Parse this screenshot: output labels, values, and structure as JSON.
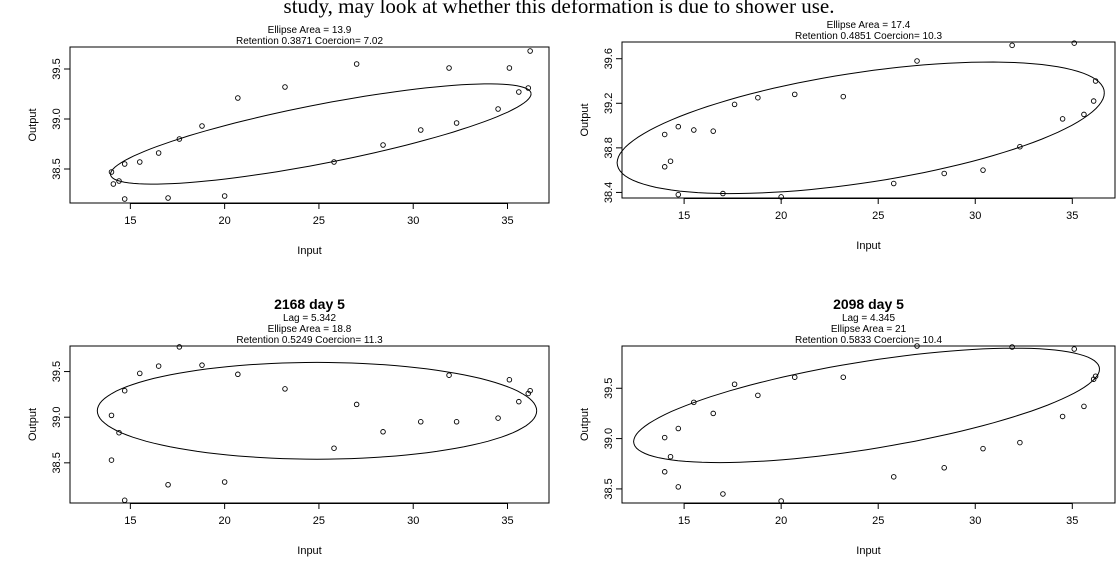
{
  "caption": "study, may look at whether this deformation is due to shower use.",
  "chart_data": [
    {
      "type": "scatter",
      "title": "",
      "lines": [
        "Ellipse Area = 13.9",
        "Retention 0.3871 Coercion= 7.02"
      ],
      "xlabel": "Input",
      "ylabel": "Output",
      "xlim": [
        11.8,
        37.2
      ],
      "ylim": [
        38.16,
        39.72
      ],
      "xticks": [
        "15",
        "20",
        "25",
        "30",
        "35"
      ],
      "yticks": [
        "38.5",
        "39.0",
        "39.5"
      ],
      "points": [
        [
          14.0,
          38.47
        ],
        [
          14.1,
          38.35
        ],
        [
          14.4,
          38.38
        ],
        [
          14.7,
          38.55
        ],
        [
          14.7,
          38.2
        ],
        [
          15.5,
          38.57
        ],
        [
          16.5,
          38.66
        ],
        [
          17.0,
          38.21
        ],
        [
          17.6,
          38.8
        ],
        [
          18.8,
          38.93
        ],
        [
          20.0,
          38.23
        ],
        [
          20.7,
          39.21
        ],
        [
          23.2,
          39.32
        ],
        [
          25.8,
          38.57
        ],
        [
          27.0,
          39.55
        ],
        [
          28.4,
          38.74
        ],
        [
          30.4,
          38.89
        ],
        [
          31.9,
          39.51
        ],
        [
          32.3,
          38.96
        ],
        [
          34.5,
          39.1
        ],
        [
          35.1,
          39.51
        ],
        [
          35.6,
          39.27
        ],
        [
          36.1,
          39.31
        ],
        [
          36.2,
          39.68
        ]
      ],
      "ellipse": {
        "cx": 25.1,
        "cy": 38.85,
        "rx": 11.15,
        "ry": 0.3,
        "rotation": 0.036
      }
    },
    {
      "type": "scatter",
      "title": "",
      "lines": [
        "Ellipse Area = 17.4",
        "Retention 0.4851 Coercion= 10.3"
      ],
      "xlabel": "Input",
      "ylabel": "Output",
      "xlim": [
        11.8,
        37.2
      ],
      "ylim": [
        38.35,
        39.75
      ],
      "xticks": [
        "15",
        "20",
        "25",
        "30",
        "35"
      ],
      "yticks": [
        "38.4",
        "38.8",
        "39.2",
        "39.6"
      ],
      "points": [
        [
          14.0,
          38.92
        ],
        [
          14.0,
          38.63
        ],
        [
          14.3,
          38.68
        ],
        [
          14.7,
          38.99
        ],
        [
          14.7,
          38.38
        ],
        [
          15.5,
          38.96
        ],
        [
          16.5,
          38.95
        ],
        [
          17.0,
          38.39
        ],
        [
          17.6,
          39.19
        ],
        [
          18.8,
          39.25
        ],
        [
          20.0,
          38.36
        ],
        [
          20.7,
          39.28
        ],
        [
          23.2,
          39.26
        ],
        [
          25.8,
          38.48
        ],
        [
          27.0,
          39.58
        ],
        [
          28.4,
          38.57
        ],
        [
          30.4,
          38.6
        ],
        [
          31.9,
          39.72
        ],
        [
          32.3,
          38.81
        ],
        [
          34.5,
          39.06
        ],
        [
          35.1,
          39.74
        ],
        [
          35.6,
          39.1
        ],
        [
          36.1,
          39.22
        ],
        [
          36.2,
          39.4
        ]
      ],
      "ellipse": {
        "cx": 24.1,
        "cy": 38.98,
        "rx": 12.55,
        "ry": 0.5,
        "rotation": 0.025
      }
    },
    {
      "type": "scatter",
      "title": "2168 day 5",
      "lines": [
        "Lag = 5.342",
        "Ellipse Area = 18.8",
        "Retention 0.5249 Coercion= 11.3"
      ],
      "xlabel": "Input",
      "ylabel": "Output",
      "xlim": [
        11.8,
        37.2
      ],
      "ylim": [
        38.06,
        39.78
      ],
      "xticks": [
        "15",
        "20",
        "25",
        "30",
        "35"
      ],
      "yticks": [
        "38.5",
        "39.0",
        "39.5"
      ],
      "points": [
        [
          14.0,
          39.02
        ],
        [
          14.0,
          38.53
        ],
        [
          14.4,
          38.83
        ],
        [
          14.7,
          39.29
        ],
        [
          14.7,
          38.09
        ],
        [
          15.5,
          39.48
        ],
        [
          16.5,
          39.56
        ],
        [
          17.0,
          38.26
        ],
        [
          17.6,
          39.77
        ],
        [
          18.8,
          39.57
        ],
        [
          20.0,
          38.29
        ],
        [
          20.7,
          39.47
        ],
        [
          23.2,
          39.31
        ],
        [
          25.8,
          38.66
        ],
        [
          27.0,
          39.14
        ],
        [
          28.4,
          38.84
        ],
        [
          30.4,
          38.95
        ],
        [
          31.9,
          39.46
        ],
        [
          32.3,
          38.95
        ],
        [
          34.5,
          38.99
        ],
        [
          35.1,
          39.41
        ],
        [
          35.6,
          39.17
        ],
        [
          36.1,
          39.26
        ],
        [
          36.2,
          39.29
        ]
      ],
      "ellipse": {
        "cx": 24.9,
        "cy": 39.07,
        "rx": 11.65,
        "ry": 0.53,
        "rotation": 0.0
      }
    },
    {
      "type": "scatter",
      "title": "2098 day 5",
      "lines": [
        "Lag = 4.345",
        "Ellipse Area = 21",
        "Retention 0.5833 Coercion= 10.4"
      ],
      "xlabel": "Input",
      "ylabel": "Output",
      "xlim": [
        11.8,
        37.2
      ],
      "ylim": [
        38.36,
        39.92
      ],
      "xticks": [
        "15",
        "20",
        "25",
        "30",
        "35"
      ],
      "yticks": [
        "38.5",
        "39.0",
        "39.5"
      ],
      "points": [
        [
          14.0,
          39.01
        ],
        [
          14.0,
          38.67
        ],
        [
          14.3,
          38.82
        ],
        [
          14.7,
          39.1
        ],
        [
          14.7,
          38.52
        ],
        [
          15.5,
          39.36
        ],
        [
          16.5,
          39.25
        ],
        [
          17.0,
          38.45
        ],
        [
          17.6,
          39.54
        ],
        [
          18.8,
          39.43
        ],
        [
          20.0,
          38.38
        ],
        [
          20.7,
          39.61
        ],
        [
          23.2,
          39.61
        ],
        [
          25.8,
          38.62
        ],
        [
          27.0,
          39.92
        ],
        [
          28.4,
          38.71
        ],
        [
          30.4,
          38.9
        ],
        [
          31.9,
          39.91
        ],
        [
          32.3,
          38.96
        ],
        [
          34.5,
          39.22
        ],
        [
          35.1,
          39.89
        ],
        [
          35.6,
          39.32
        ],
        [
          36.1,
          39.59
        ],
        [
          36.2,
          39.62
        ]
      ],
      "ellipse": {
        "cx": 24.4,
        "cy": 39.33,
        "rx": 12.0,
        "ry": 0.44,
        "rotation": 0.03
      }
    }
  ]
}
